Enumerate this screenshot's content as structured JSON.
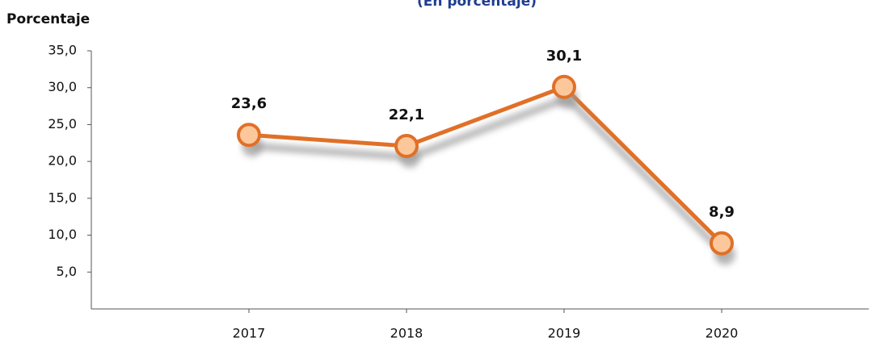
{
  "chart_data": {
    "type": "line",
    "title": "(En porcentaje)",
    "y_label": "Porcentaje",
    "categories": [
      "2017",
      "2018",
      "2019",
      "2020"
    ],
    "series": [
      {
        "name": "Porcentaje",
        "color": "#e07028",
        "marker_fill": "#fcc89b",
        "values": [
          23.6,
          22.1,
          30.1,
          8.9
        ],
        "value_labels": [
          "23,6",
          "22,1",
          "30,1",
          "8,9"
        ]
      }
    ],
    "ylim": [
      0,
      35
    ],
    "yticks": [
      {
        "value": 5,
        "label": "5,0"
      },
      {
        "value": 10,
        "label": "10,0"
      },
      {
        "value": 15,
        "label": "15,0"
      },
      {
        "value": 20,
        "label": "20,0"
      },
      {
        "value": 25,
        "label": "25,0"
      },
      {
        "value": 30,
        "label": "30,0"
      },
      {
        "value": 35,
        "label": "35,0"
      }
    ],
    "grid": false
  }
}
